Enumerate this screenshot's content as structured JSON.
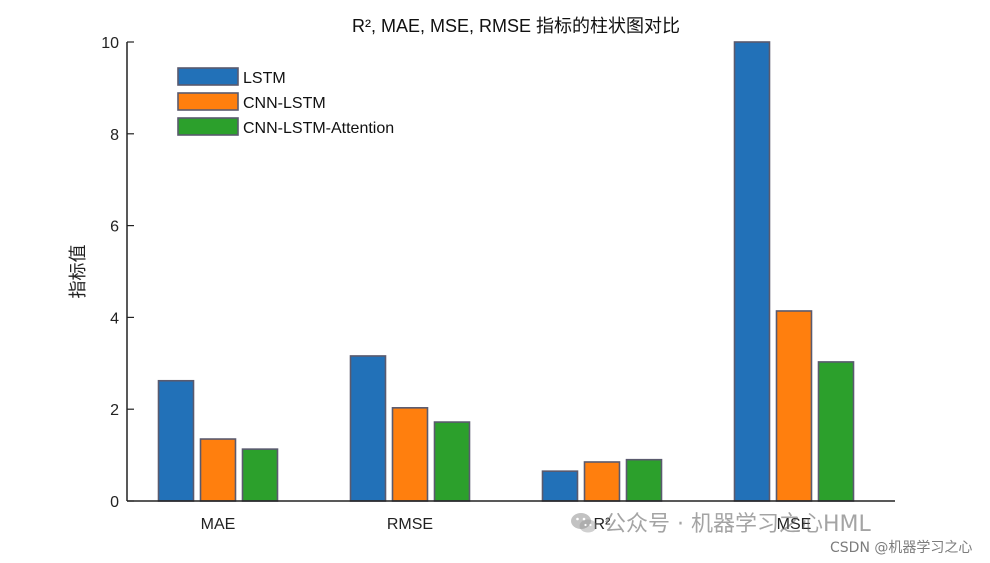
{
  "chart_data": {
    "type": "bar",
    "title": "R², MAE, MSE, RMSE 指标的柱状图对比",
    "xlabel": "",
    "ylabel": "指标值",
    "categories": [
      "MAE",
      "RMSE",
      "R²",
      "MSE"
    ],
    "series": [
      {
        "name": "LSTM",
        "values": [
          2.62,
          3.16,
          0.65,
          10.0
        ],
        "color": "#2271b8"
      },
      {
        "name": "CNN-LSTM",
        "values": [
          1.35,
          2.03,
          0.85,
          4.14
        ],
        "color": "#ff7f0e"
      },
      {
        "name": "CNN-LSTM-Attention",
        "values": [
          1.13,
          1.72,
          0.9,
          3.03
        ],
        "color": "#2ca02c"
      }
    ],
    "ylim": [
      0,
      10
    ],
    "yticks": [
      0,
      2,
      4,
      6,
      8,
      10
    ],
    "grid": false,
    "legend_position": "top-left"
  },
  "watermark": {
    "text": "公众号 · 机器学习之心HML",
    "source": "CSDN @机器学习之心"
  }
}
